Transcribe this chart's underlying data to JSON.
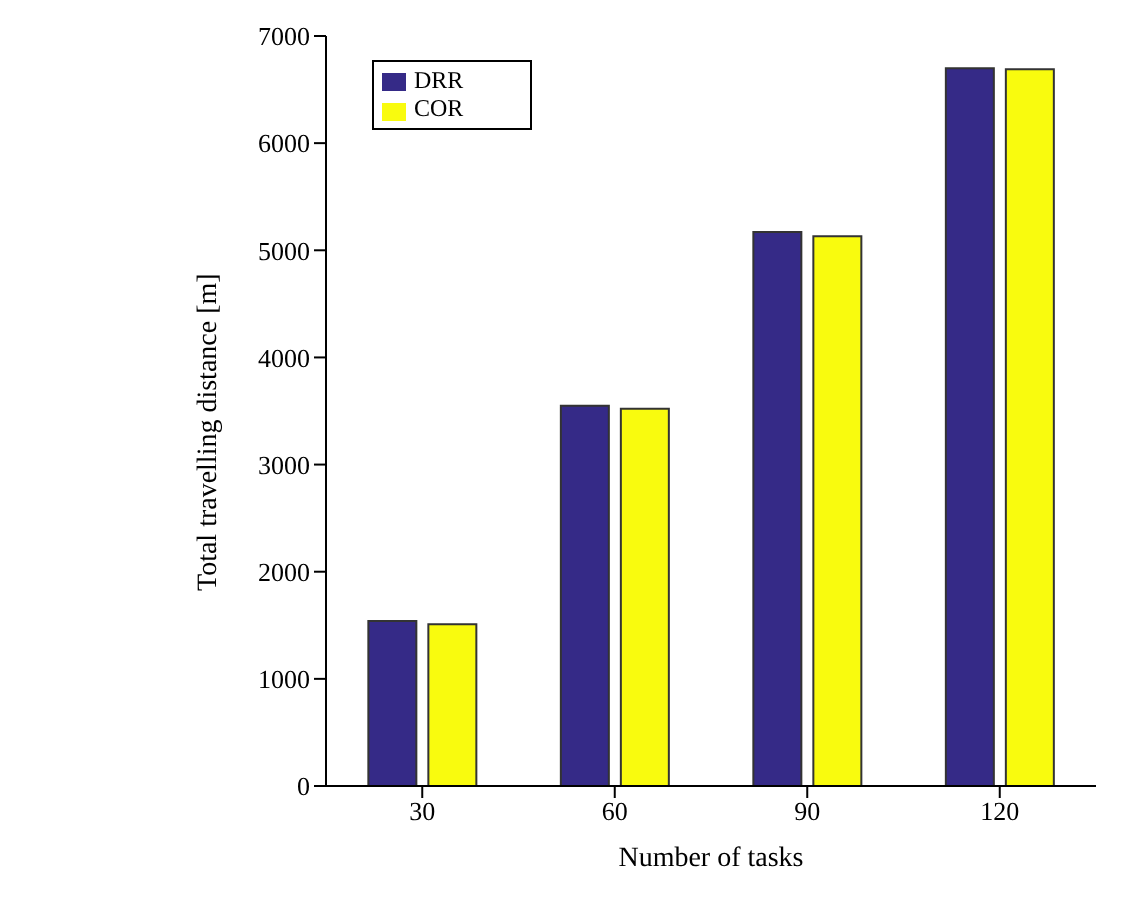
{
  "chart_data": {
    "type": "bar",
    "xlabel": "Number of tasks",
    "ylabel": "Total travelling distance [m]",
    "categories": [
      "30",
      "60",
      "90",
      "120"
    ],
    "series": [
      {
        "name": "DRR",
        "color": "#352a87",
        "values": [
          1540,
          3550,
          5170,
          6700
        ]
      },
      {
        "name": "COR",
        "color": "#f9fb0e",
        "values": [
          1510,
          3520,
          5130,
          6690
        ]
      }
    ],
    "ylim": [
      0,
      7000
    ],
    "yticks": [
      0,
      1000,
      2000,
      3000,
      4000,
      5000,
      6000,
      7000
    ],
    "legend": "top left"
  }
}
